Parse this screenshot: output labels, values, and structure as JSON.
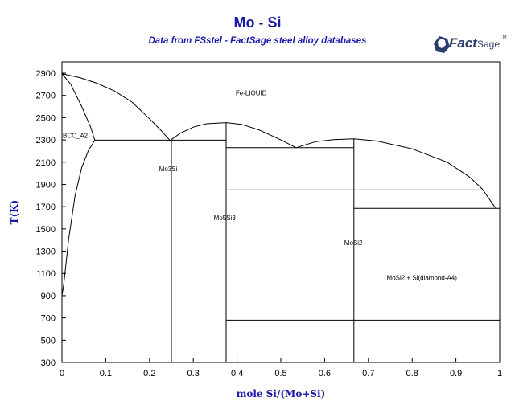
{
  "header": {
    "title": "Mo - Si",
    "subtitle": "Data from FSstel - FactSage steel alloy databases",
    "logo_text": "Fact",
    "logo_sage": "Sage",
    "logo_tm": "TM"
  },
  "colors": {
    "title": "#1a1aa8",
    "line": "#000000",
    "logo": "#2b3d6b"
  },
  "chart_data": {
    "type": "line",
    "title": "Mo - Si",
    "subtitle": "Data from FSstel - FactSage steel alloy databases",
    "xlabel": "mole Si/(Mo+Si)",
    "ylabel": "T(K)",
    "xlim": [
      0,
      1
    ],
    "ylim": [
      300,
      3000
    ],
    "xticks": [
      0,
      0.1,
      0.2,
      0.3,
      0.4,
      0.5,
      0.6,
      0.7,
      0.8,
      0.9,
      1
    ],
    "xtick_labels": [
      "0",
      "0.1",
      "0.2",
      "0.3",
      "0.4",
      "0.5",
      "0.6",
      "0.7",
      "0.8",
      "0.9",
      "1"
    ],
    "yticks": [
      300,
      500,
      700,
      900,
      1100,
      1300,
      1500,
      1700,
      1900,
      2100,
      2300,
      2500,
      2700,
      2900
    ],
    "ytick_labels": [
      "300",
      "500",
      "700",
      "900",
      "1100",
      "1300",
      "1500",
      "1700",
      "1900",
      "2100",
      "2300",
      "2500",
      "2700",
      "2900"
    ],
    "grid": false,
    "series": [
      {
        "id": "liquidus-left",
        "points": [
          [
            0,
            2896
          ],
          [
            0.04,
            2860
          ],
          [
            0.08,
            2810
          ],
          [
            0.12,
            2740
          ],
          [
            0.16,
            2640
          ],
          [
            0.2,
            2490
          ],
          [
            0.225,
            2390
          ],
          [
            0.247,
            2295
          ]
        ]
      },
      {
        "id": "liquidus-mo5si3",
        "points": [
          [
            0.247,
            2295
          ],
          [
            0.27,
            2360
          ],
          [
            0.3,
            2415
          ],
          [
            0.33,
            2445
          ],
          [
            0.375,
            2455
          ],
          [
            0.41,
            2440
          ],
          [
            0.45,
            2390
          ],
          [
            0.5,
            2300
          ],
          [
            0.535,
            2230
          ]
        ]
      },
      {
        "id": "liquidus-mosi2",
        "points": [
          [
            0.535,
            2230
          ],
          [
            0.58,
            2285
          ],
          [
            0.62,
            2303
          ],
          [
            0.667,
            2310
          ],
          [
            0.72,
            2290
          ],
          [
            0.8,
            2220
          ],
          [
            0.88,
            2100
          ],
          [
            0.93,
            1970
          ],
          [
            0.96,
            1860
          ],
          [
            0.99,
            1690
          ]
        ]
      },
      {
        "id": "solidus-bcc-upper",
        "points": [
          [
            0,
            2896
          ],
          [
            0.02,
            2800
          ],
          [
            0.045,
            2600
          ],
          [
            0.065,
            2420
          ],
          [
            0.075,
            2298
          ]
        ]
      },
      {
        "id": "solvus-bcc",
        "points": [
          [
            0.075,
            2298
          ],
          [
            0.06,
            2200
          ],
          [
            0.045,
            2050
          ],
          [
            0.03,
            1800
          ],
          [
            0.015,
            1400
          ],
          [
            0.004,
            1000
          ],
          [
            0,
            900
          ]
        ]
      },
      {
        "id": "eutectic-2300",
        "points": [
          [
            0.075,
            2298
          ],
          [
            0.375,
            2298
          ]
        ]
      },
      {
        "id": "peritectic-2230",
        "points": [
          [
            0.375,
            2230
          ],
          [
            0.667,
            2230
          ]
        ]
      },
      {
        "id": "transition-1850",
        "points": [
          [
            0.375,
            1850
          ],
          [
            0.96,
            1850
          ]
        ]
      },
      {
        "id": "eutectic-1685",
        "points": [
          [
            0.667,
            1685
          ],
          [
            1,
            1685
          ]
        ]
      },
      {
        "id": "transition-680",
        "points": [
          [
            0.375,
            680
          ],
          [
            1,
            680
          ]
        ]
      },
      {
        "id": "mo3si-line",
        "points": [
          [
            0.25,
            300
          ],
          [
            0.25,
            2298
          ]
        ]
      },
      {
        "id": "mo5si3-line",
        "points": [
          [
            0.375,
            300
          ],
          [
            0.375,
            2455
          ]
        ]
      },
      {
        "id": "mosi2-line",
        "points": [
          [
            0.667,
            300
          ],
          [
            0.667,
            2310
          ]
        ]
      }
    ],
    "annotations": [
      {
        "text": "Fe-LIQUID",
        "x": 0.395,
        "y": 2700
      },
      {
        "text": "BCC_A2",
        "x": 0.0,
        "y": 2320
      },
      {
        "text": "Mo3Si",
        "x": 0.22,
        "y": 2020
      },
      {
        "text": "Mo5Si3",
        "x": 0.345,
        "y": 1580
      },
      {
        "text": "MoSi2",
        "x": 0.643,
        "y": 1355
      },
      {
        "text": "MoSi2 + Si(diamond-A4)",
        "x": 0.74,
        "y": 1040
      }
    ]
  }
}
